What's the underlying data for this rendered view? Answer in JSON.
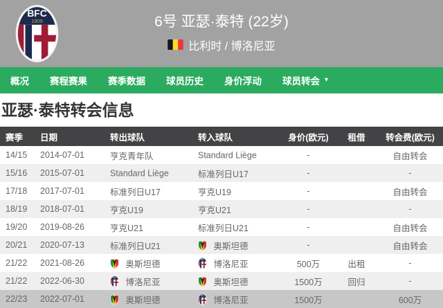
{
  "header": {
    "title": "6号 亚瑟·泰特 (22岁)",
    "nationality_club": "比利时 / 博洛尼亚",
    "crest_icon": "bologna-crest",
    "flag_icon": "belgium-flag"
  },
  "nav": {
    "caret_glyph": "▾",
    "items": [
      {
        "label": "概况",
        "caret": false
      },
      {
        "label": "赛程赛果",
        "caret": false
      },
      {
        "label": "赛季数据",
        "caret": false
      },
      {
        "label": "球员历史",
        "caret": false
      },
      {
        "label": "身价浮动",
        "caret": false
      },
      {
        "label": "球员转会",
        "caret": true
      }
    ]
  },
  "page": {
    "title": "亚瑟·泰特转会信息"
  },
  "table": {
    "columns": [
      "赛季",
      "日期",
      "转出球队",
      "转入球队",
      "身价(欧元)",
      "租借",
      "转会费(欧元)"
    ],
    "rows": [
      {
        "season": "14/15",
        "date": "2014-07-01",
        "from": {
          "name": "亨克青年队",
          "logo": ""
        },
        "to": {
          "name": "Standard Liège",
          "logo": ""
        },
        "value": "-",
        "loan": "",
        "fee": "自由转会",
        "highlight": false
      },
      {
        "season": "15/16",
        "date": "2015-07-01",
        "from": {
          "name": "Standard Liège",
          "logo": ""
        },
        "to": {
          "name": "标准列日U17",
          "logo": ""
        },
        "value": "-",
        "loan": "",
        "fee": "-",
        "highlight": false
      },
      {
        "season": "17/18",
        "date": "2017-07-01",
        "from": {
          "name": "标准列日U17",
          "logo": ""
        },
        "to": {
          "name": "亨克U19",
          "logo": ""
        },
        "value": "-",
        "loan": "",
        "fee": "自由转会",
        "highlight": false
      },
      {
        "season": "18/19",
        "date": "2018-07-01",
        "from": {
          "name": "亨克U19",
          "logo": ""
        },
        "to": {
          "name": "亨克U21",
          "logo": ""
        },
        "value": "-",
        "loan": "",
        "fee": "-",
        "highlight": false
      },
      {
        "season": "19/20",
        "date": "2019-08-26",
        "from": {
          "name": "亨克U21",
          "logo": ""
        },
        "to": {
          "name": "标准列日U21",
          "logo": ""
        },
        "value": "-",
        "loan": "",
        "fee": "自由转会",
        "highlight": false
      },
      {
        "season": "20/21",
        "date": "2020-07-13",
        "from": {
          "name": "标准列日U21",
          "logo": ""
        },
        "to": {
          "name": "奥斯坦德",
          "logo": "oostende"
        },
        "value": "-",
        "loan": "",
        "fee": "自由转会",
        "highlight": false
      },
      {
        "season": "21/22",
        "date": "2021-08-26",
        "from": {
          "name": "奥斯坦德",
          "logo": "oostende"
        },
        "to": {
          "name": "博洛尼亚",
          "logo": "bologna"
        },
        "value": "500万",
        "loan": "出租",
        "fee": "-",
        "highlight": false
      },
      {
        "season": "21/22",
        "date": "2022-06-30",
        "from": {
          "name": "博洛尼亚",
          "logo": "bologna"
        },
        "to": {
          "name": "奥斯坦德",
          "logo": "oostende"
        },
        "value": "1500万",
        "loan": "回归",
        "fee": "-",
        "highlight": false
      },
      {
        "season": "22/23",
        "date": "2022-07-01",
        "from": {
          "name": "奥斯坦德",
          "logo": "oostende"
        },
        "to": {
          "name": "博洛尼亚",
          "logo": "bologna"
        },
        "value": "1500万",
        "loan": "",
        "fee": "600万",
        "highlight": true
      }
    ]
  },
  "colors": {
    "header_bg": "#a2a2a2",
    "nav_green": "#2bab60",
    "table_header_bg": "#434345",
    "row_alt_bg": "#efefef",
    "row_highlight_bg": "#c7c7c7",
    "belgium_flag": [
      "#17181a",
      "#fdda25",
      "#ef3340"
    ],
    "bologna_navy": "#1c2a4d",
    "bologna_red": "#a01c36",
    "oostende_green": "#1e8a3c",
    "oostende_yellow": "#f3c312",
    "oostende_red": "#d8232a"
  }
}
